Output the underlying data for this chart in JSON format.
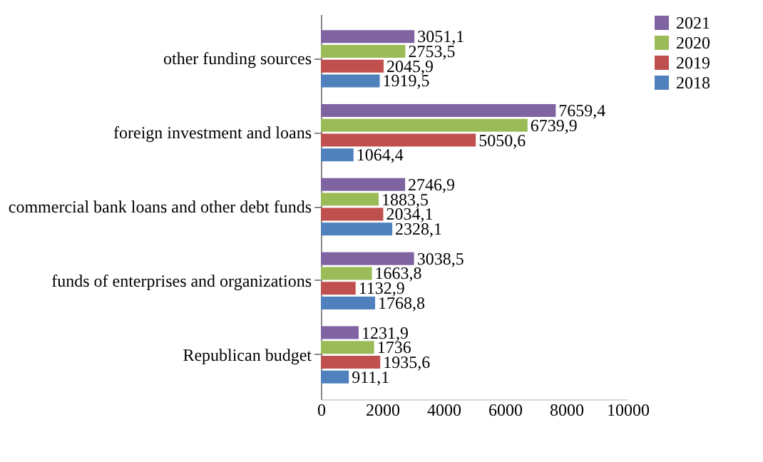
{
  "chart_data": {
    "type": "bar",
    "orientation": "horizontal",
    "categories": [
      "other funding sources",
      "foreign investment and loans",
      "commercial bank loans and other debt funds",
      "funds of enterprises and organizations",
      "Republican budget"
    ],
    "series": [
      {
        "name": "2021",
        "color": "#8064a2",
        "values": [
          3051.1,
          7659.4,
          2746.9,
          3038.5,
          1231.9
        ],
        "value_labels": [
          "3051,1",
          "7659,4",
          "2746,9",
          "3038,5",
          "1231,9"
        ]
      },
      {
        "name": "2020",
        "color": "#9bbb59",
        "values": [
          2753.5,
          6739.9,
          1883.5,
          1663.8,
          1736
        ],
        "value_labels": [
          "2753,5",
          "6739,9",
          "1883,5",
          "1663,8",
          "1736"
        ]
      },
      {
        "name": "2019",
        "color": "#c0504d",
        "values": [
          2045.9,
          5050.6,
          2034.1,
          1132.9,
          1935.6
        ],
        "value_labels": [
          "2045,9",
          "5050,6",
          "2034,1",
          "1132,9",
          "1935,6"
        ]
      },
      {
        "name": "2018",
        "color": "#4f81bd",
        "values": [
          1919.5,
          1064.4,
          2328.1,
          1768.8,
          911.1
        ],
        "value_labels": [
          "1919,5",
          "1064,4",
          "2328,1",
          "1768,8",
          "911,1"
        ]
      }
    ],
    "xlim": [
      0,
      10000
    ],
    "xticks": [
      0,
      2000,
      4000,
      6000,
      8000,
      10000
    ],
    "grid": false,
    "legend": "right"
  }
}
